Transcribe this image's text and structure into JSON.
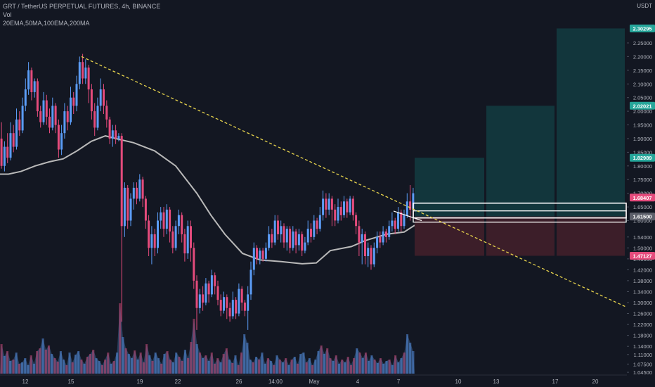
{
  "header": {
    "symbol_line": "GRT / TetherUS PERPETUAL FUTURES, 4h, BINANCE",
    "indicator_vol": "Vol",
    "indicator_ma": "20EMA,50MA,100EMA,200MA"
  },
  "colors": {
    "background": "#131722",
    "bull": "#5b9cf6",
    "bear": "#e44b7c",
    "target_fill": "#133a3f",
    "stop_fill": "#3e1f2a",
    "trendline": "#e8d44d",
    "ma_line": "#b9b9b9",
    "axis_text": "#b2b5be"
  },
  "chart_data": {
    "type": "candlestick",
    "price_axis": {
      "unit": "USDT",
      "ylim": [
        1.04,
        2.335
      ],
      "ticks": [
        "2.25000",
        "2.20000",
        "2.15000",
        "2.10000",
        "2.05000",
        "2.00000",
        "1.95000",
        "1.90000",
        "1.85000",
        "1.80000",
        "1.75000",
        "1.70000",
        "1.65000",
        "1.60000",
        "1.54000",
        "1.50000",
        "1.46000",
        "1.42000",
        "1.38000",
        "1.34000",
        "1.30000",
        "1.26000",
        "1.22000",
        "1.18000",
        "1.14000",
        "1.11000",
        "1.07500",
        "1.04500"
      ],
      "badges": [
        {
          "label": "2.30295",
          "value": 2.30295,
          "color": "#26a69a"
        },
        {
          "label": "2.02021",
          "value": 2.02021,
          "color": "#26a69a"
        },
        {
          "label": "1.82989",
          "value": 1.82989,
          "color": "#26a69a"
        },
        {
          "label": "1.68407",
          "value": 1.68407,
          "color": "#e44b7c"
        },
        {
          "label": "1.61500",
          "value": 1.615,
          "color": "#5d606b"
        },
        {
          "label": "1.47127",
          "value": 1.47127,
          "color": "#e44b7c"
        }
      ]
    },
    "time_axis": {
      "labels": [
        "12",
        "15",
        "19",
        "22",
        "26",
        "14:00",
        "May",
        "4",
        "7",
        "10",
        "13",
        "17",
        "20"
      ]
    },
    "trendline": {
      "from": {
        "t": 116,
        "p": 2.2
      },
      "to": {
        "t": 890,
        "p": 1.285
      }
    },
    "entry_price": 1.615,
    "stop_price": 1.47127,
    "targets": [
      1.82989,
      2.02021,
      2.30295
    ],
    "moving_average": [
      {
        "t": 0,
        "p": 1.77
      },
      {
        "t": 12,
        "p": 1.77
      },
      {
        "t": 30,
        "p": 1.78
      },
      {
        "t": 50,
        "p": 1.8
      },
      {
        "t": 70,
        "p": 1.815
      },
      {
        "t": 90,
        "p": 1.826
      },
      {
        "t": 110,
        "p": 1.856
      },
      {
        "t": 130,
        "p": 1.89
      },
      {
        "t": 150,
        "p": 1.91
      },
      {
        "t": 165,
        "p": 1.9
      },
      {
        "t": 190,
        "p": 1.885
      },
      {
        "t": 220,
        "p": 1.855
      },
      {
        "t": 250,
        "p": 1.8
      },
      {
        "t": 280,
        "p": 1.7
      },
      {
        "t": 300,
        "p": 1.62
      },
      {
        "t": 320,
        "p": 1.55
      },
      {
        "t": 345,
        "p": 1.48
      },
      {
        "t": 370,
        "p": 1.456
      },
      {
        "t": 400,
        "p": 1.45
      },
      {
        "t": 430,
        "p": 1.442
      },
      {
        "t": 450,
        "p": 1.445
      },
      {
        "t": 470,
        "p": 1.49
      },
      {
        "t": 500,
        "p": 1.505
      },
      {
        "t": 520,
        "p": 1.527
      },
      {
        "t": 550,
        "p": 1.55
      },
      {
        "t": 575,
        "p": 1.558
      },
      {
        "t": 590,
        "p": 1.583
      }
    ],
    "candles": [
      {
        "o": 1.9,
        "c": 1.8,
        "h": 1.96,
        "l": 1.79
      },
      {
        "o": 1.8,
        "c": 1.87,
        "h": 1.89,
        "l": 1.78
      },
      {
        "o": 1.87,
        "c": 1.83,
        "h": 1.92,
        "l": 1.81
      },
      {
        "o": 1.83,
        "c": 1.92,
        "h": 1.96,
        "l": 1.82
      },
      {
        "o": 1.92,
        "c": 1.87,
        "h": 1.95,
        "l": 1.85
      },
      {
        "o": 1.87,
        "c": 1.97,
        "h": 2.01,
        "l": 1.86
      },
      {
        "o": 1.97,
        "c": 1.93,
        "h": 2.0,
        "l": 1.91
      },
      {
        "o": 1.93,
        "c": 2.02,
        "h": 2.05,
        "l": 1.92
      },
      {
        "o": 2.02,
        "c": 2.08,
        "h": 2.12,
        "l": 2.0
      },
      {
        "o": 2.08,
        "c": 2.15,
        "h": 2.18,
        "l": 2.06
      },
      {
        "o": 2.15,
        "c": 2.07,
        "h": 2.16,
        "l": 2.04
      },
      {
        "o": 2.07,
        "c": 2.11,
        "h": 2.12,
        "l": 2.05
      },
      {
        "o": 2.11,
        "c": 2.0,
        "h": 2.12,
        "l": 1.98
      },
      {
        "o": 2.0,
        "c": 1.96,
        "h": 2.02,
        "l": 1.94
      },
      {
        "o": 1.96,
        "c": 2.04,
        "h": 2.07,
        "l": 1.95
      },
      {
        "o": 2.04,
        "c": 1.98,
        "h": 2.06,
        "l": 1.95
      },
      {
        "o": 1.98,
        "c": 1.94,
        "h": 2.01,
        "l": 1.92
      },
      {
        "o": 1.94,
        "c": 2.02,
        "h": 2.05,
        "l": 1.93
      },
      {
        "o": 2.02,
        "c": 1.95,
        "h": 2.03,
        "l": 1.92
      },
      {
        "o": 1.95,
        "c": 1.86,
        "h": 1.97,
        "l": 1.83
      },
      {
        "o": 1.86,
        "c": 1.92,
        "h": 1.95,
        "l": 1.84
      },
      {
        "o": 1.92,
        "c": 2.0,
        "h": 2.03,
        "l": 1.9
      },
      {
        "o": 2.0,
        "c": 1.96,
        "h": 2.02,
        "l": 1.93
      },
      {
        "o": 1.96,
        "c": 2.05,
        "h": 2.09,
        "l": 1.95
      },
      {
        "o": 2.05,
        "c": 2.02,
        "h": 2.07,
        "l": 1.99
      },
      {
        "o": 2.02,
        "c": 2.1,
        "h": 2.13,
        "l": 2.0
      },
      {
        "o": 2.1,
        "c": 2.18,
        "h": 2.2,
        "l": 2.08
      },
      {
        "o": 2.18,
        "c": 2.12,
        "h": 2.21,
        "l": 2.1
      },
      {
        "o": 2.12,
        "c": 2.16,
        "h": 2.19,
        "l": 2.1
      },
      {
        "o": 2.16,
        "c": 2.08,
        "h": 2.17,
        "l": 2.03
      },
      {
        "o": 2.08,
        "c": 2.0,
        "h": 2.1,
        "l": 1.97
      },
      {
        "o": 2.0,
        "c": 1.94,
        "h": 2.03,
        "l": 1.91
      },
      {
        "o": 1.94,
        "c": 2.02,
        "h": 2.05,
        "l": 1.93
      },
      {
        "o": 2.02,
        "c": 2.08,
        "h": 2.12,
        "l": 2.0
      },
      {
        "o": 2.08,
        "c": 2.02,
        "h": 2.1,
        "l": 1.99
      },
      {
        "o": 2.02,
        "c": 1.97,
        "h": 2.04,
        "l": 1.94
      },
      {
        "o": 1.97,
        "c": 1.9,
        "h": 1.98,
        "l": 1.88
      },
      {
        "o": 1.9,
        "c": 1.93,
        "h": 1.95,
        "l": 1.87
      },
      {
        "o": 1.93,
        "c": 1.9,
        "h": 1.95,
        "l": 1.88
      },
      {
        "o": 1.9,
        "c": 1.91,
        "h": 1.92,
        "l": 1.89
      },
      {
        "o": 1.91,
        "c": 1.58,
        "h": 1.92,
        "l": 1.23
      },
      {
        "o": 1.58,
        "c": 1.72,
        "h": 1.74,
        "l": 1.54
      },
      {
        "o": 1.72,
        "c": 1.6,
        "h": 1.73,
        "l": 1.57
      },
      {
        "o": 1.6,
        "c": 1.68,
        "h": 1.7,
        "l": 1.58
      },
      {
        "o": 1.68,
        "c": 1.72,
        "h": 1.74,
        "l": 1.64
      },
      {
        "o": 1.72,
        "c": 1.68,
        "h": 1.74,
        "l": 1.66
      },
      {
        "o": 1.68,
        "c": 1.75,
        "h": 1.77,
        "l": 1.67
      },
      {
        "o": 1.75,
        "c": 1.68,
        "h": 1.76,
        "l": 1.65
      },
      {
        "o": 1.68,
        "c": 1.6,
        "h": 1.69,
        "l": 1.57
      },
      {
        "o": 1.6,
        "c": 1.5,
        "h": 1.62,
        "l": 1.47
      },
      {
        "o": 1.5,
        "c": 1.55,
        "h": 1.58,
        "l": 1.44
      },
      {
        "o": 1.55,
        "c": 1.5,
        "h": 1.57,
        "l": 1.47
      },
      {
        "o": 1.5,
        "c": 1.6,
        "h": 1.63,
        "l": 1.48
      },
      {
        "o": 1.6,
        "c": 1.63,
        "h": 1.65,
        "l": 1.57
      },
      {
        "o": 1.63,
        "c": 1.57,
        "h": 1.65,
        "l": 1.54
      },
      {
        "o": 1.57,
        "c": 1.64,
        "h": 1.66,
        "l": 1.55
      },
      {
        "o": 1.64,
        "c": 1.56,
        "h": 1.65,
        "l": 1.52
      },
      {
        "o": 1.56,
        "c": 1.5,
        "h": 1.58,
        "l": 1.48
      },
      {
        "o": 1.5,
        "c": 1.58,
        "h": 1.6,
        "l": 1.49
      },
      {
        "o": 1.58,
        "c": 1.62,
        "h": 1.64,
        "l": 1.55
      },
      {
        "o": 1.62,
        "c": 1.55,
        "h": 1.63,
        "l": 1.52
      },
      {
        "o": 1.55,
        "c": 1.48,
        "h": 1.57,
        "l": 1.45
      },
      {
        "o": 1.48,
        "c": 1.58,
        "h": 1.6,
        "l": 1.46
      },
      {
        "o": 1.58,
        "c": 1.5,
        "h": 1.6,
        "l": 1.45
      },
      {
        "o": 1.5,
        "c": 1.38,
        "h": 1.52,
        "l": 1.35
      },
      {
        "o": 1.38,
        "c": 1.28,
        "h": 1.4,
        "l": 1.2
      },
      {
        "o": 1.28,
        "c": 1.33,
        "h": 1.35,
        "l": 1.26
      },
      {
        "o": 1.33,
        "c": 1.3,
        "h": 1.36,
        "l": 1.27
      },
      {
        "o": 1.3,
        "c": 1.37,
        "h": 1.39,
        "l": 1.29
      },
      {
        "o": 1.37,
        "c": 1.33,
        "h": 1.38,
        "l": 1.3
      },
      {
        "o": 1.33,
        "c": 1.4,
        "h": 1.42,
        "l": 1.32
      },
      {
        "o": 1.4,
        "c": 1.36,
        "h": 1.41,
        "l": 1.33
      },
      {
        "o": 1.36,
        "c": 1.31,
        "h": 1.38,
        "l": 1.29
      },
      {
        "o": 1.31,
        "c": 1.27,
        "h": 1.33,
        "l": 1.25
      },
      {
        "o": 1.27,
        "c": 1.32,
        "h": 1.34,
        "l": 1.26
      },
      {
        "o": 1.32,
        "c": 1.28,
        "h": 1.33,
        "l": 1.24
      },
      {
        "o": 1.28,
        "c": 1.25,
        "h": 1.3,
        "l": 1.23
      },
      {
        "o": 1.25,
        "c": 1.31,
        "h": 1.34,
        "l": 1.24
      },
      {
        "o": 1.31,
        "c": 1.26,
        "h": 1.32,
        "l": 1.24
      },
      {
        "o": 1.26,
        "c": 1.35,
        "h": 1.37,
        "l": 1.25
      },
      {
        "o": 1.35,
        "c": 1.3,
        "h": 1.36,
        "l": 1.27
      },
      {
        "o": 1.3,
        "c": 1.27,
        "h": 1.31,
        "l": 1.25
      },
      {
        "o": 1.27,
        "c": 1.33,
        "h": 1.36,
        "l": 1.2
      },
      {
        "o": 1.33,
        "c": 1.42,
        "h": 1.45,
        "l": 1.31
      },
      {
        "o": 1.42,
        "c": 1.5,
        "h": 1.52,
        "l": 1.4
      },
      {
        "o": 1.5,
        "c": 1.46,
        "h": 1.51,
        "l": 1.44
      },
      {
        "o": 1.46,
        "c": 1.49,
        "h": 1.5,
        "l": 1.44
      },
      {
        "o": 1.49,
        "c": 1.46,
        "h": 1.5,
        "l": 1.45
      },
      {
        "o": 1.46,
        "c": 1.5,
        "h": 1.52,
        "l": 1.45
      },
      {
        "o": 1.5,
        "c": 1.55,
        "h": 1.58,
        "l": 1.49
      },
      {
        "o": 1.55,
        "c": 1.52,
        "h": 1.57,
        "l": 1.5
      },
      {
        "o": 1.52,
        "c": 1.6,
        "h": 1.62,
        "l": 1.51
      },
      {
        "o": 1.6,
        "c": 1.55,
        "h": 1.62,
        "l": 1.53
      },
      {
        "o": 1.55,
        "c": 1.58,
        "h": 1.6,
        "l": 1.52
      },
      {
        "o": 1.58,
        "c": 1.52,
        "h": 1.59,
        "l": 1.5
      },
      {
        "o": 1.52,
        "c": 1.57,
        "h": 1.58,
        "l": 1.49
      },
      {
        "o": 1.57,
        "c": 1.5,
        "h": 1.58,
        "l": 1.48
      },
      {
        "o": 1.5,
        "c": 1.56,
        "h": 1.58,
        "l": 1.49
      },
      {
        "o": 1.56,
        "c": 1.51,
        "h": 1.57,
        "l": 1.48
      },
      {
        "o": 1.51,
        "c": 1.55,
        "h": 1.57,
        "l": 1.49
      },
      {
        "o": 1.55,
        "c": 1.49,
        "h": 1.56,
        "l": 1.47
      },
      {
        "o": 1.49,
        "c": 1.52,
        "h": 1.54,
        "l": 1.48
      },
      {
        "o": 1.52,
        "c": 1.57,
        "h": 1.6,
        "l": 1.51
      },
      {
        "o": 1.57,
        "c": 1.54,
        "h": 1.59,
        "l": 1.52
      },
      {
        "o": 1.54,
        "c": 1.6,
        "h": 1.62,
        "l": 1.53
      },
      {
        "o": 1.6,
        "c": 1.57,
        "h": 1.61,
        "l": 1.55
      },
      {
        "o": 1.57,
        "c": 1.62,
        "h": 1.65,
        "l": 1.56
      },
      {
        "o": 1.62,
        "c": 1.68,
        "h": 1.71,
        "l": 1.6
      },
      {
        "o": 1.68,
        "c": 1.64,
        "h": 1.7,
        "l": 1.61
      },
      {
        "o": 1.64,
        "c": 1.68,
        "h": 1.7,
        "l": 1.62
      },
      {
        "o": 1.68,
        "c": 1.64,
        "h": 1.69,
        "l": 1.58
      },
      {
        "o": 1.64,
        "c": 1.6,
        "h": 1.66,
        "l": 1.58
      },
      {
        "o": 1.6,
        "c": 1.65,
        "h": 1.68,
        "l": 1.59
      },
      {
        "o": 1.65,
        "c": 1.62,
        "h": 1.67,
        "l": 1.6
      },
      {
        "o": 1.62,
        "c": 1.67,
        "h": 1.69,
        "l": 1.61
      },
      {
        "o": 1.67,
        "c": 1.63,
        "h": 1.68,
        "l": 1.61
      },
      {
        "o": 1.63,
        "c": 1.68,
        "h": 1.69,
        "l": 1.62
      },
      {
        "o": 1.68,
        "c": 1.62,
        "h": 1.69,
        "l": 1.6
      },
      {
        "o": 1.62,
        "c": 1.58,
        "h": 1.63,
        "l": 1.55
      },
      {
        "o": 1.58,
        "c": 1.52,
        "h": 1.6,
        "l": 1.47
      },
      {
        "o": 1.52,
        "c": 1.55,
        "h": 1.57,
        "l": 1.44
      },
      {
        "o": 1.55,
        "c": 1.47,
        "h": 1.56,
        "l": 1.44
      },
      {
        "o": 1.47,
        "c": 1.5,
        "h": 1.52,
        "l": 1.43
      },
      {
        "o": 1.5,
        "c": 1.44,
        "h": 1.51,
        "l": 1.42
      },
      {
        "o": 1.44,
        "c": 1.5,
        "h": 1.52,
        "l": 1.43
      },
      {
        "o": 1.5,
        "c": 1.54,
        "h": 1.56,
        "l": 1.48
      },
      {
        "o": 1.54,
        "c": 1.52,
        "h": 1.56,
        "l": 1.5
      },
      {
        "o": 1.52,
        "c": 1.56,
        "h": 1.58,
        "l": 1.51
      },
      {
        "o": 1.56,
        "c": 1.54,
        "h": 1.57,
        "l": 1.52
      },
      {
        "o": 1.54,
        "c": 1.58,
        "h": 1.6,
        "l": 1.53
      },
      {
        "o": 1.58,
        "c": 1.6,
        "h": 1.63,
        "l": 1.56
      },
      {
        "o": 1.6,
        "c": 1.57,
        "h": 1.61,
        "l": 1.55
      },
      {
        "o": 1.57,
        "c": 1.63,
        "h": 1.65,
        "l": 1.56
      },
      {
        "o": 1.63,
        "c": 1.58,
        "h": 1.64,
        "l": 1.56
      },
      {
        "o": 1.58,
        "c": 1.62,
        "h": 1.64,
        "l": 1.57
      },
      {
        "o": 1.62,
        "c": 1.67,
        "h": 1.7,
        "l": 1.61
      },
      {
        "o": 1.67,
        "c": 1.64,
        "h": 1.73,
        "l": 1.6
      },
      {
        "o": 1.64,
        "c": 1.7,
        "h": 1.72,
        "l": 1.63
      }
    ],
    "volume": [
      0.42,
      0.25,
      0.32,
      0.18,
      0.2,
      0.3,
      0.14,
      0.16,
      0.22,
      0.12,
      0.26,
      0.14,
      0.32,
      0.36,
      0.5,
      0.34,
      0.4,
      0.28,
      0.22,
      0.17,
      0.32,
      0.2,
      0.12,
      0.3,
      0.16,
      0.27,
      0.32,
      0.2,
      0.14,
      0.24,
      0.28,
      0.34,
      0.22,
      0.18,
      0.12,
      0.2,
      0.3,
      0.14,
      0.18,
      0.3,
      1.0,
      0.52,
      0.36,
      0.28,
      0.22,
      0.33,
      0.2,
      0.3,
      0.16,
      0.42,
      0.26,
      0.18,
      0.3,
      0.22,
      0.14,
      0.28,
      0.32,
      0.2,
      0.16,
      0.3,
      0.24,
      0.18,
      0.34,
      0.22,
      0.45,
      0.78,
      0.42,
      0.3,
      0.22,
      0.26,
      0.18,
      0.3,
      0.14,
      0.22,
      0.16,
      0.28,
      0.36,
      0.2,
      0.15,
      0.26,
      0.12,
      0.3,
      0.56,
      0.44,
      0.2,
      0.16,
      0.24,
      0.2,
      0.3,
      0.14,
      0.22,
      0.18,
      0.12,
      0.26,
      0.2,
      0.16,
      0.22,
      0.12,
      0.2,
      0.24,
      0.14,
      0.28,
      0.3,
      0.16,
      0.22,
      0.12,
      0.2,
      0.32,
      0.4,
      0.28,
      0.36,
      0.22,
      0.18,
      0.26,
      0.14,
      0.2,
      0.16,
      0.24,
      0.12,
      0.22,
      0.36,
      0.3,
      0.22,
      0.3,
      0.18,
      0.26,
      0.2,
      0.15,
      0.22,
      0.14,
      0.18,
      0.2,
      0.12,
      0.26,
      0.16,
      0.22,
      0.3,
      0.56,
      0.44,
      0.32
    ]
  }
}
